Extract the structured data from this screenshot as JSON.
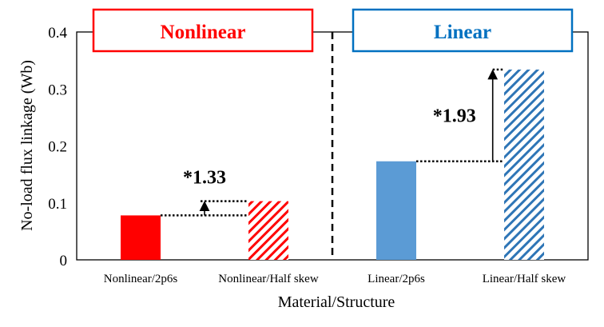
{
  "chart_data": {
    "type": "bar",
    "title": "",
    "xlabel": "Material/Structure",
    "ylabel": "No-load flux linkage (Wb)",
    "ylim": [
      0,
      0.4
    ],
    "yticks": [
      "0",
      "0.1",
      "0.2",
      "0.3",
      "0.4"
    ],
    "categories": [
      "Nonlinear/2p6s",
      "Nonlinear/Half skew",
      "Linear/2p6s",
      "Linear/Half skew"
    ],
    "values": [
      0.078,
      0.103,
      0.173,
      0.334
    ],
    "bar_colors": [
      "#ff0000",
      "#ff0000",
      "#5b9bd5",
      "#2e75b6"
    ],
    "bar_fill": [
      "solid",
      "hatched",
      "solid",
      "hatched"
    ],
    "groups": [
      {
        "label": "Nonlinear",
        "color": "#ff0000"
      },
      {
        "label": "Linear",
        "color": "#0070c0"
      }
    ],
    "annotations": [
      {
        "text": "*1.33",
        "from_category": 0,
        "to_category": 1
      },
      {
        "text": "*1.93",
        "from_category": 2,
        "to_category": 3
      }
    ],
    "grid": false,
    "legend": "none"
  }
}
